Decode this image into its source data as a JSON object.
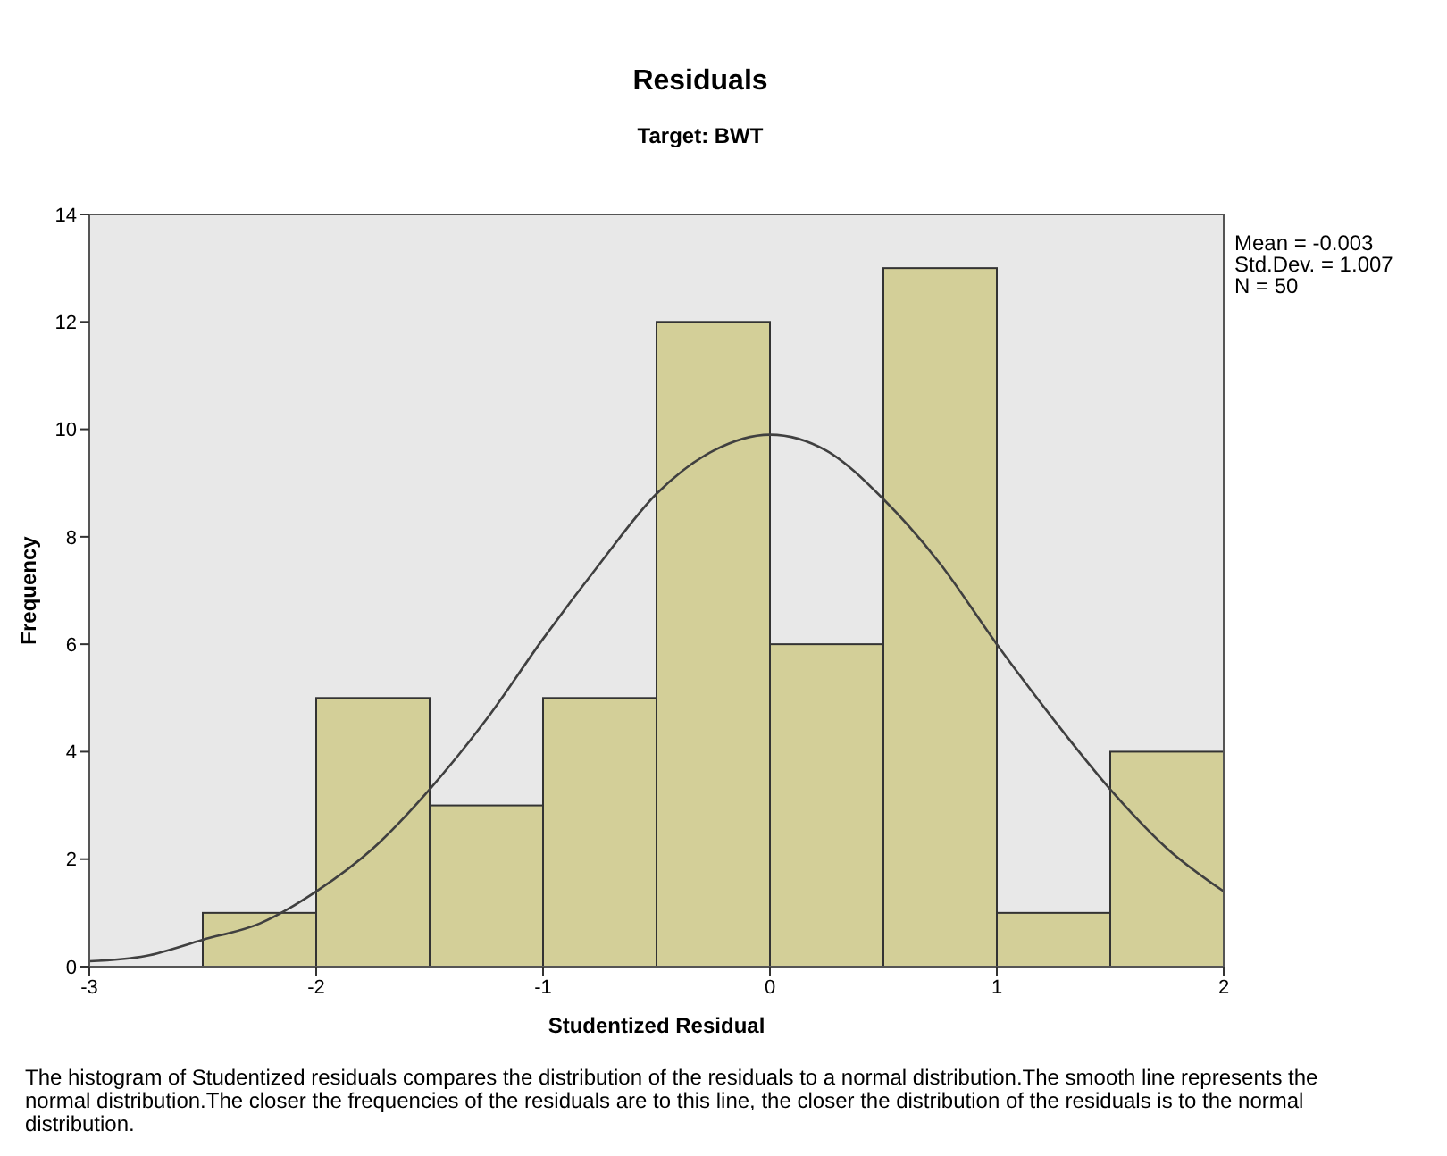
{
  "chart_data": {
    "type": "histogram",
    "title": "Residuals",
    "subtitle": "Target: BWT",
    "xlabel": "Studentized Residual",
    "ylabel": "Frequency",
    "bins": [
      -2.5,
      -2,
      -1.5,
      -1,
      -0.5,
      0,
      0.5,
      1,
      1.5,
      2
    ],
    "values": [
      1,
      5,
      3,
      5,
      12,
      6,
      13,
      1,
      4
    ],
    "color": "#d3cf98",
    "series": [
      {
        "type": "line",
        "color": "#404040",
        "x": [
          -3,
          -2.75,
          -2.5,
          -2.25,
          -2,
          -1.75,
          -1.5,
          -1.25,
          -1,
          -0.75,
          -0.5,
          -0.25,
          0,
          0.25,
          0.5,
          0.75,
          1,
          1.25,
          1.5,
          1.75,
          2
        ],
        "values": [
          0.1,
          0.2,
          0.5,
          0.8,
          1.4,
          2.2,
          3.3,
          4.6,
          6.1,
          7.5,
          8.8,
          9.6,
          9.9,
          9.6,
          8.7,
          7.5,
          6.0,
          4.6,
          3.3,
          2.2,
          1.4
        ]
      }
    ],
    "xlim": [
      -3,
      2
    ],
    "xticks": [
      -3,
      -2,
      -1,
      0,
      1,
      2
    ],
    "ylim": [
      0,
      14
    ],
    "yticks": [
      0,
      2,
      4,
      6,
      8,
      10,
      12,
      14
    ],
    "grid": false,
    "annotations": [
      "Mean = -0.003",
      "Std.Dev. = 1.007",
      "N = 50",
      "The histogram of Studentized residuals compares the distribution of the residuals to a normal distribution.The smooth line represents the normal distribution.The closer the frequencies of the residuals are to this line, the closer the distribution of the residuals is to the normal distribution."
    ]
  }
}
